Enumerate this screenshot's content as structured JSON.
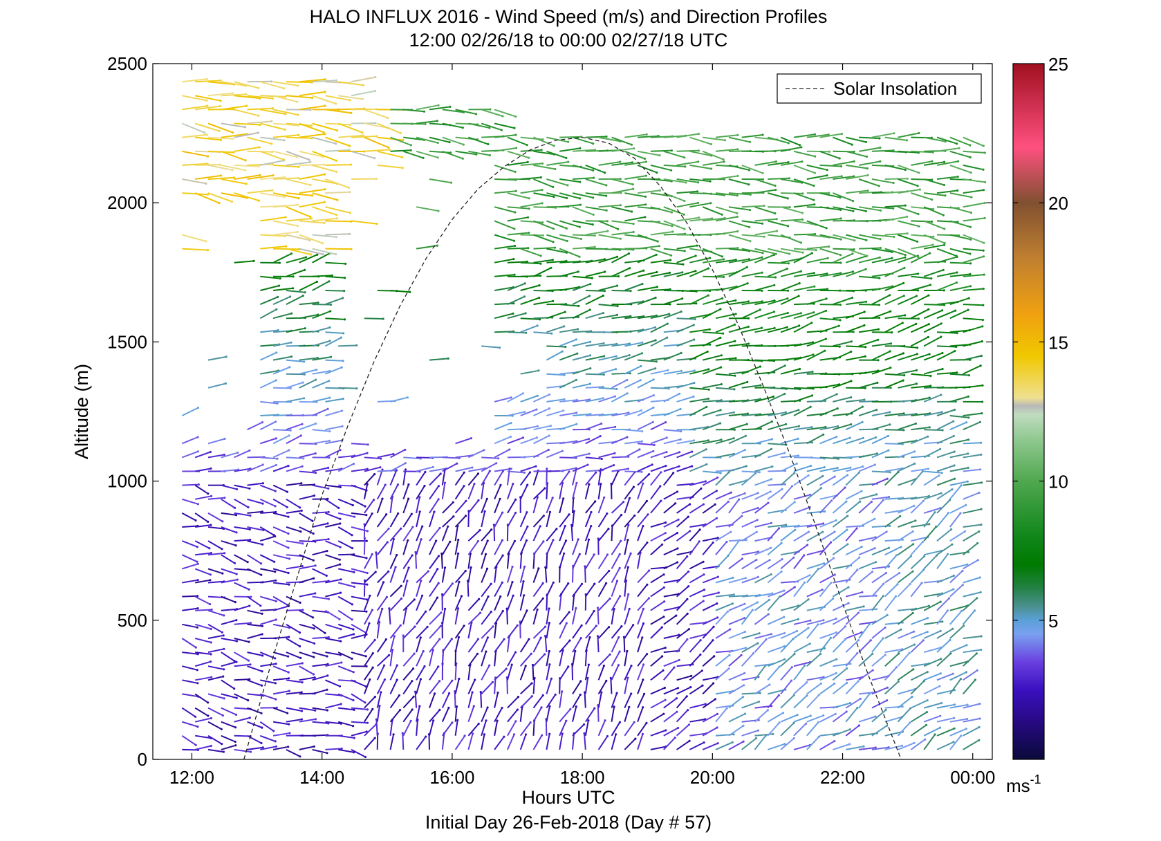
{
  "chart_data": {
    "type": "scatter",
    "subtype": "wind-barb-profile",
    "title": "HALO INFLUX 2016 - Wind Speed (m/s) and Direction Profiles",
    "subtitle": "12:00 02/26/18 to 00:00 02/27/18  UTC",
    "xlabel": "Hours UTC",
    "xlabel2": "Initial Day 26-Feb-2018 (Day # 57)",
    "ylabel": "Altitude (m)",
    "xlim": [
      11.4,
      24.3
    ],
    "ylim": [
      0,
      2500
    ],
    "x_ticks": [
      {
        "value": 12,
        "label": "12:00"
      },
      {
        "value": 14,
        "label": "14:00"
      },
      {
        "value": 16,
        "label": "16:00"
      },
      {
        "value": 18,
        "label": "18:00"
      },
      {
        "value": 20,
        "label": "20:00"
      },
      {
        "value": 22,
        "label": "22:00"
      },
      {
        "value": 24,
        "label": "00:00"
      }
    ],
    "y_ticks": [
      {
        "value": 0,
        "label": "0"
      },
      {
        "value": 500,
        "label": "500"
      },
      {
        "value": 1000,
        "label": "1000"
      },
      {
        "value": 1500,
        "label": "1500"
      },
      {
        "value": 2000,
        "label": "2000"
      },
      {
        "value": 2500,
        "label": "2500"
      }
    ],
    "legend": {
      "label": "Solar Insolation",
      "placement": "top-right",
      "line_style": "dashed"
    },
    "solar_insolation": {
      "points": [
        [
          12.8,
          0
        ],
        [
          13.2,
          330
        ],
        [
          13.6,
          640
        ],
        [
          14.0,
          950
        ],
        [
          14.4,
          1200
        ],
        [
          14.8,
          1430
        ],
        [
          15.2,
          1630
        ],
        [
          15.6,
          1800
        ],
        [
          16.0,
          1940
        ],
        [
          16.4,
          2050
        ],
        [
          16.8,
          2130
        ],
        [
          17.2,
          2190
        ],
        [
          17.6,
          2225
        ],
        [
          18.0,
          2235
        ],
        [
          18.4,
          2215
        ],
        [
          18.8,
          2160
        ],
        [
          19.2,
          2060
        ],
        [
          19.6,
          1930
        ],
        [
          20.0,
          1760
        ],
        [
          20.4,
          1560
        ],
        [
          20.8,
          1330
        ],
        [
          21.2,
          1090
        ],
        [
          21.6,
          830
        ],
        [
          22.0,
          560
        ],
        [
          22.4,
          300
        ],
        [
          22.9,
          0
        ]
      ]
    },
    "colorbar": {
      "min": 0,
      "max": 25,
      "unit_label": "ms",
      "unit_exponent": "-1",
      "ticks": [
        {
          "value": 5,
          "label": "5"
        },
        {
          "value": 10,
          "label": "10"
        },
        {
          "value": 15,
          "label": "15"
        },
        {
          "value": 20,
          "label": "20"
        },
        {
          "value": 25,
          "label": "25"
        }
      ],
      "stops": [
        {
          "value": 0,
          "color": "#0a0a3a"
        },
        {
          "value": 1.5,
          "color": "#2a0a8a"
        },
        {
          "value": 2.5,
          "color": "#3a10c0"
        },
        {
          "value": 3.5,
          "color": "#6a40e0"
        },
        {
          "value": 4.5,
          "color": "#7aa0f0"
        },
        {
          "value": 5.0,
          "color": "#5aa0d8"
        },
        {
          "value": 5.5,
          "color": "#4a9090"
        },
        {
          "value": 6.2,
          "color": "#208040"
        },
        {
          "value": 7.0,
          "color": "#007a00"
        },
        {
          "value": 8.0,
          "color": "#10861a"
        },
        {
          "value": 10.0,
          "color": "#50a850"
        },
        {
          "value": 11.5,
          "color": "#90c890"
        },
        {
          "value": 12.4,
          "color": "#c0dcc0"
        },
        {
          "value": 12.7,
          "color": "#b8b8b8"
        },
        {
          "value": 13.0,
          "color": "#f0e090"
        },
        {
          "value": 14.5,
          "color": "#f0c800"
        },
        {
          "value": 16.0,
          "color": "#f0a010"
        },
        {
          "value": 18.0,
          "color": "#c08030"
        },
        {
          "value": 20.0,
          "color": "#805030"
        },
        {
          "value": 22.0,
          "color": "#ff5080"
        },
        {
          "value": 25.0,
          "color": "#a01020"
        }
      ]
    }
  }
}
